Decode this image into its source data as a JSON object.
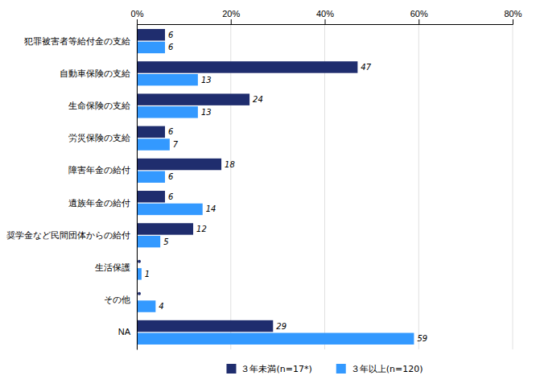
{
  "chart_data": {
    "type": "bar",
    "orientation": "horizontal",
    "categories": [
      "犯罪被害者等給付金の支給",
      "自動車保険の支給",
      "生命保険の支給",
      "労災保険の支給",
      "障害年金の給付",
      "遺族年金の給付",
      "奨学金など民間団体からの給付",
      "生活保護",
      "その他",
      "NA"
    ],
    "series": [
      {
        "name": "３年未満(n=17*)",
        "color": "#1f2d6e",
        "marker": "dot",
        "values": [
          6,
          47,
          24,
          6,
          18,
          6,
          12,
          0,
          0,
          29
        ]
      },
      {
        "name": "３年以上(n=120)",
        "color": "#3399ff",
        "values": [
          6,
          13,
          13,
          7,
          6,
          14,
          5,
          1,
          4,
          59
        ]
      }
    ],
    "xlim": [
      0,
      80
    ],
    "xticks": [
      {
        "value": 0,
        "label": "0%"
      },
      {
        "value": 20,
        "label": "20%"
      },
      {
        "value": 40,
        "label": "40%"
      },
      {
        "value": 60,
        "label": "60%"
      },
      {
        "value": 80,
        "label": "80%"
      }
    ],
    "grid": true,
    "data_labels": true,
    "legend": "bottom"
  }
}
